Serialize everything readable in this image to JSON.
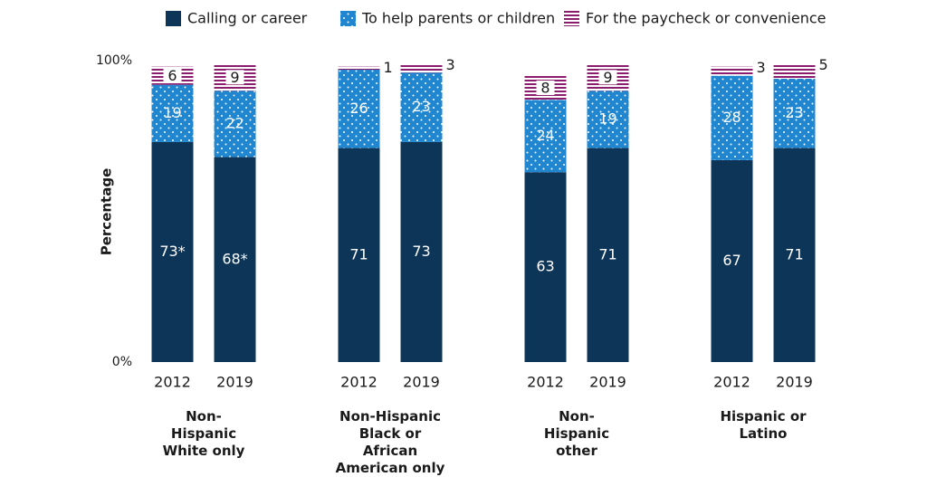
{
  "chart_data": {
    "type": "stacked_bar",
    "y_label": "Percentage",
    "groups": [
      {
        "label": "Non-Hispanic White only",
        "categories": [
          "2012",
          "2019"
        ]
      },
      {
        "label": "Non-Hispanic Black or African American only",
        "categories": [
          "2012",
          "2019"
        ]
      },
      {
        "label": "Non-Hispanic other",
        "categories": [
          "2012",
          "2019"
        ]
      },
      {
        "label": "Hispanic or Latino",
        "categories": [
          "2012",
          "2019"
        ]
      }
    ],
    "series": [
      {
        "name": "Calling or career",
        "color": "#0d3558",
        "pattern": "solid",
        "values": [
          73,
          68,
          71,
          73,
          63,
          71,
          67,
          71
        ],
        "value_labels": [
          "73*",
          "68*",
          "71",
          "73",
          "63",
          "71",
          "67",
          "71"
        ]
      },
      {
        "name": "To help parents or children",
        "color": "#1f86cf",
        "pattern": "dots",
        "values": [
          19,
          22,
          26,
          23,
          24,
          19,
          28,
          23
        ]
      },
      {
        "name": "For the paycheck or convenience",
        "color": "#8c1c6e",
        "pattern": "stripes",
        "values": [
          6,
          9,
          1,
          3,
          8,
          9,
          3,
          5
        ]
      }
    ],
    "ylim": [
      0,
      100
    ],
    "yticks": [
      {
        "value": 0,
        "label": "0%"
      },
      {
        "value": 100,
        "label": "100%"
      }
    ],
    "legend": "top"
  }
}
